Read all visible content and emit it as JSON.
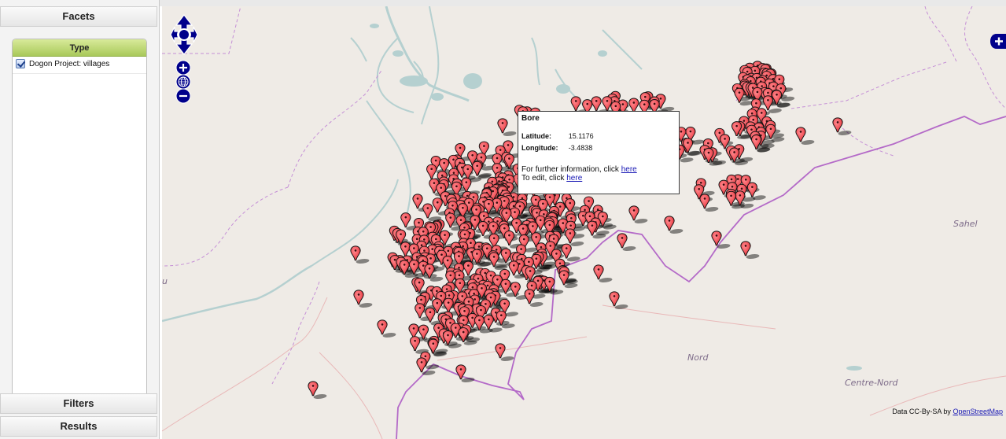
{
  "sidebar": {
    "facets_label": "Facets",
    "type_label": "Type",
    "facet_item_label": "Dogon Project: villages",
    "facet_item_checked": true,
    "filters_label": "Filters",
    "results_label": "Results"
  },
  "map": {
    "place_labels": [
      "Nord",
      "Centre-Nord",
      "Sahel",
      "u"
    ],
    "colors": {
      "background": "#efebe6",
      "marker": "#f2545b",
      "border_purple": "#b46ac8",
      "boundary_dashed": "#c58fd6",
      "water": "#b5d0d0",
      "control": "#00008b"
    },
    "controls": {
      "pan": "pan-arrows-icon",
      "zoom_in": "plus-icon",
      "zoom_world": "globe-icon",
      "zoom_out": "minus-icon",
      "layers": "plus-icon"
    },
    "attribution_text": "Data CC-By-SA by",
    "attribution_link": "OpenStreetMap"
  },
  "popup": {
    "title": "Bore",
    "latitude_label": "Latitude:",
    "latitude_value": "15.1176",
    "longitude_label": "Longitude:",
    "longitude_value": "-3.4838",
    "info_text": "For further information, click",
    "info_link": "here",
    "edit_text": "To edit, click",
    "edit_link": "here"
  }
}
